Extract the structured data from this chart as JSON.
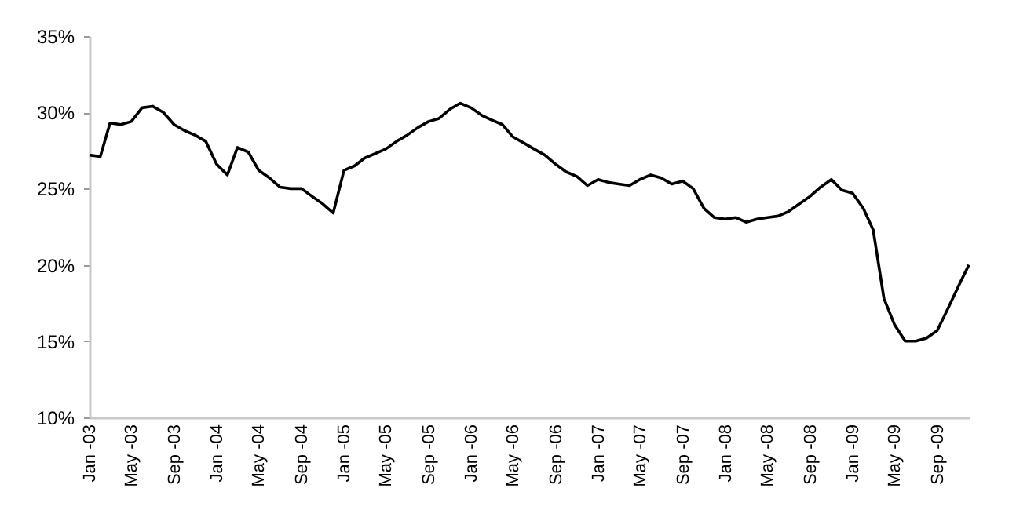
{
  "chart_data": {
    "type": "line",
    "x": [
      "2003-01",
      "2003-02",
      "2003-03",
      "2003-04",
      "2003-05",
      "2003-06",
      "2003-07",
      "2003-08",
      "2003-09",
      "2003-10",
      "2003-11",
      "2003-12",
      "2004-01",
      "2004-02",
      "2004-03",
      "2004-04",
      "2004-05",
      "2004-06",
      "2004-07",
      "2004-08",
      "2004-09",
      "2004-10",
      "2004-11",
      "2004-12",
      "2005-01",
      "2005-02",
      "2005-03",
      "2005-04",
      "2005-05",
      "2005-06",
      "2005-07",
      "2005-08",
      "2005-09",
      "2005-10",
      "2005-11",
      "2005-12",
      "2006-01",
      "2006-02",
      "2006-03",
      "2006-04",
      "2006-05",
      "2006-06",
      "2006-07",
      "2006-08",
      "2006-09",
      "2006-10",
      "2006-11",
      "2006-12",
      "2007-01",
      "2007-02",
      "2007-03",
      "2007-04",
      "2007-05",
      "2007-06",
      "2007-07",
      "2007-08",
      "2007-09",
      "2007-10",
      "2007-11",
      "2007-12",
      "2008-01",
      "2008-02",
      "2008-03",
      "2008-04",
      "2008-05",
      "2008-06",
      "2008-07",
      "2008-08",
      "2008-09",
      "2008-10",
      "2008-11",
      "2008-12",
      "2009-01",
      "2009-02",
      "2009-03",
      "2009-04",
      "2009-05",
      "2009-06",
      "2009-07",
      "2009-08",
      "2009-09",
      "2009-10",
      "2009-11",
      "2009-12"
    ],
    "series": [
      {
        "color": "#000000",
        "values": [
          27.2,
          27.1,
          29.3,
          29.2,
          29.4,
          30.3,
          30.4,
          30.0,
          29.2,
          28.8,
          28.5,
          28.1,
          26.6,
          25.9,
          27.7,
          27.4,
          26.2,
          25.7,
          25.1,
          25.0,
          25.0,
          24.5,
          24.0,
          23.4,
          26.2,
          26.5,
          27.0,
          27.3,
          27.6,
          28.1,
          28.5,
          29.0,
          29.4,
          29.6,
          30.2,
          30.6,
          30.3,
          29.8,
          29.5,
          29.2,
          28.4,
          28.0,
          27.6,
          27.2,
          26.6,
          26.1,
          25.8,
          25.2,
          25.6,
          25.4,
          25.3,
          25.2,
          25.6,
          25.9,
          25.7,
          25.3,
          25.5,
          25.0,
          23.7,
          23.1,
          23.0,
          23.1,
          22.8,
          23.0,
          23.1,
          23.2,
          23.5,
          24.0,
          24.5,
          25.1,
          25.6,
          24.9,
          24.7,
          23.7,
          22.3,
          17.8,
          16.1,
          15.0,
          15.0,
          15.2,
          15.7,
          17.1,
          18.6,
          20.0
        ]
      }
    ],
    "xlim": [
      "2003-01",
      "2009-12"
    ],
    "xticks": [
      {
        "value": "2003-01",
        "label": "Jan -03"
      },
      {
        "value": "2003-05",
        "label": "May -03"
      },
      {
        "value": "2003-09",
        "label": "Sep -03"
      },
      {
        "value": "2004-01",
        "label": "Jan -04"
      },
      {
        "value": "2004-05",
        "label": "May -04"
      },
      {
        "value": "2004-09",
        "label": "Sep -04"
      },
      {
        "value": "2005-01",
        "label": "Jan -05"
      },
      {
        "value": "2005-05",
        "label": "May -05"
      },
      {
        "value": "2005-09",
        "label": "Sep -05"
      },
      {
        "value": "2006-01",
        "label": "Jan -06"
      },
      {
        "value": "2006-05",
        "label": "May -06"
      },
      {
        "value": "2006-09",
        "label": "Sep -06"
      },
      {
        "value": "2007-01",
        "label": "Jan -07"
      },
      {
        "value": "2007-05",
        "label": "May -07"
      },
      {
        "value": "2007-09",
        "label": "Sep -07"
      },
      {
        "value": "2008-01",
        "label": "Jan -08"
      },
      {
        "value": "2008-05",
        "label": "May -08"
      },
      {
        "value": "2008-09",
        "label": "Sep -08"
      },
      {
        "value": "2009-01",
        "label": "Jan -09"
      },
      {
        "value": "2009-05",
        "label": "May -09"
      },
      {
        "value": "2009-09",
        "label": "Sep -09"
      }
    ],
    "ylim": [
      10,
      35
    ],
    "yticks": [
      {
        "value": 10,
        "label": "10%"
      },
      {
        "value": 15,
        "label": "15%"
      },
      {
        "value": 20,
        "label": "20%"
      },
      {
        "value": 25,
        "label": "25%"
      },
      {
        "value": 30,
        "label": "30%"
      },
      {
        "value": 35,
        "label": "35%"
      }
    ],
    "grid": false,
    "legend": false,
    "marker": "none",
    "line_style": "solid"
  }
}
